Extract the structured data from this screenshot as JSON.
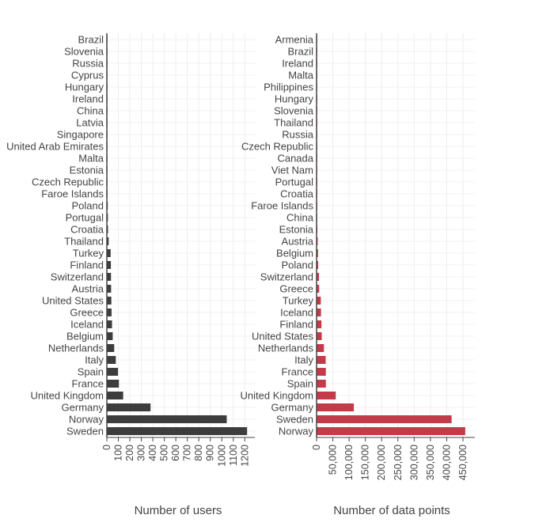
{
  "chart_data": [
    {
      "type": "bar",
      "orientation": "horizontal",
      "xlabel": "Number of users",
      "color": "#333333",
      "xlim": [
        0,
        1250
      ],
      "xticks": [
        "0",
        "100",
        "200",
        "300",
        "400",
        "500",
        "600",
        "700",
        "800",
        "900",
        "1000",
        "1100",
        "1200"
      ],
      "xtick_values": [
        0,
        100,
        200,
        300,
        400,
        500,
        600,
        700,
        800,
        900,
        1000,
        1100,
        1200
      ],
      "grid": true,
      "categories": [
        "Brazil",
        "Slovenia",
        "Russia",
        "Cyprus",
        "Hungary",
        "Ireland",
        "China",
        "Latvia",
        "Singapore",
        "United Arab Emirates",
        "Malta",
        "Estonia",
        "Czech Republic",
        "Faroe Islands",
        "Poland",
        "Portugal",
        "Croatia",
        "Thailand",
        "Turkey",
        "Finland",
        "Switzerland",
        "Austria",
        "United States",
        "Greece",
        "Iceland",
        "Belgium",
        "Netherlands",
        "Italy",
        "Spain",
        "France",
        "United Kingdom",
        "Germany",
        "Norway",
        "Sweden"
      ],
      "values": [
        1,
        1,
        1,
        1,
        2,
        2,
        2,
        2,
        3,
        3,
        3,
        4,
        5,
        6,
        8,
        9,
        10,
        16,
        33,
        35,
        36,
        37,
        39,
        41,
        45,
        51,
        64,
        78,
        97,
        105,
        142,
        380,
        1043,
        1220
      ]
    },
    {
      "type": "bar",
      "orientation": "horizontal",
      "xlabel": "Number of data points",
      "color": "#c0303f",
      "xlim": [
        0,
        485000
      ],
      "xticks": [
        "0",
        "50,000",
        "100,000",
        "150,000",
        "200,000",
        "250,000",
        "300,000",
        "350,000",
        "400,000",
        "450,000"
      ],
      "xtick_values": [
        0,
        50000,
        100000,
        150000,
        200000,
        250000,
        300000,
        350000,
        400000,
        450000
      ],
      "grid": true,
      "categories": [
        "Armenia",
        "Brazil",
        "Ireland",
        "Malta",
        "Philippines",
        "Hungary",
        "Slovenia",
        "Thailand",
        "Russia",
        "Czech Republic",
        "Canada",
        "Viet Nam",
        "Portugal",
        "Croatia",
        "Faroe Islands",
        "China",
        "Estonia",
        "Austria",
        "Belgium",
        "Poland",
        "Switzerland",
        "Greece",
        "Turkey",
        "Iceland",
        "Finland",
        "United States",
        "Netherlands",
        "Italy",
        "France",
        "Spain",
        "United Kingdom",
        "Germany",
        "Sweden",
        "Norway"
      ],
      "values": [
        50,
        100,
        150,
        200,
        250,
        300,
        400,
        500,
        600,
        700,
        800,
        900,
        1100,
        1300,
        1500,
        1800,
        2500,
        3500,
        4500,
        5000,
        7500,
        8000,
        13000,
        13600,
        15000,
        15900,
        22700,
        28000,
        28500,
        28600,
        59000,
        114500,
        415000,
        457000
      ]
    }
  ]
}
